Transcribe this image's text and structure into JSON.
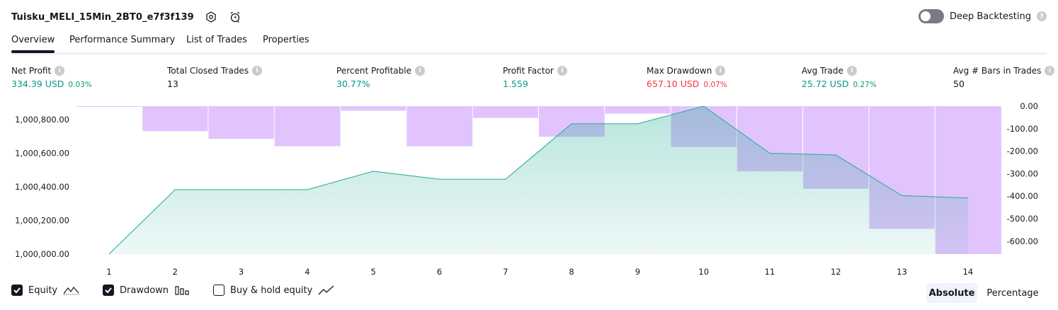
{
  "header": {
    "title": "Tuisku_MELI_15Min_2BT0_e7f3f139",
    "icons": [
      "settings-icon",
      "alarm-clock-icon"
    ]
  },
  "deep_backtesting": {
    "label": "Deep Backtesting",
    "enabled": false,
    "help": "?"
  },
  "tabs": [
    {
      "label": "Overview",
      "active": true
    },
    {
      "label": "Performance Summary",
      "active": false
    },
    {
      "label": "List of Trades",
      "active": false
    },
    {
      "label": "Properties",
      "active": false
    }
  ],
  "info_glyph": "i",
  "metrics": [
    {
      "label": "Net Profit",
      "value": "334.39 USD",
      "pct": "0.03%",
      "color": "#089981"
    },
    {
      "label": "Total Closed Trades",
      "value": "13",
      "pct": "",
      "color": "#131722"
    },
    {
      "label": "Percent Profitable",
      "value": "30.77%",
      "pct": "",
      "color": "#089981"
    },
    {
      "label": "Profit Factor",
      "value": "1.559",
      "pct": "",
      "color": "#089981"
    },
    {
      "label": "Max Drawdown",
      "value": "657.10 USD",
      "pct": "0.07%",
      "color": "#f23645"
    },
    {
      "label": "Avg Trade",
      "value": "25.72 USD",
      "pct": "0.27%",
      "color": "#089981"
    },
    {
      "label": "Avg # Bars in Trades",
      "value": "50",
      "pct": "",
      "color": "#131722"
    }
  ],
  "chart_data": {
    "type": "area",
    "x": [
      1,
      2,
      3,
      4,
      5,
      6,
      7,
      8,
      9,
      10,
      11,
      12,
      13,
      14
    ],
    "series": [
      {
        "name": "Equity",
        "axis": "left",
        "values": [
          1000000,
          1000383,
          1000383,
          1000383,
          1000493,
          1000445,
          1000445,
          1000775,
          1000775,
          1000880,
          1000600,
          1000590,
          1000348,
          1000334
        ]
      },
      {
        "name": "Drawdown",
        "axis": "right",
        "type": "bar",
        "values": [
          -3,
          -111,
          -145,
          -178,
          -20,
          -178,
          -52,
          -136,
          -33,
          -181,
          -289,
          -367,
          -545,
          -657
        ]
      }
    ],
    "y_left": {
      "ticks": [
        "1,000,000.00",
        "1,000,200.00",
        "1,000,400.00",
        "1,000,600.00",
        "1,000,800.00"
      ],
      "range": [
        1000000,
        1000880
      ]
    },
    "y_right": {
      "ticks": [
        "0.00",
        "-100.00",
        "-200.00",
        "-300.00",
        "-400.00",
        "-500.00",
        "-600.00"
      ],
      "range": [
        -657,
        0
      ]
    },
    "colors": {
      "equity_line": "#22ab94",
      "equity_fill": "#22ab94",
      "drawdown": "#e1c4fd",
      "overlap": "#aab4e5"
    }
  },
  "legend": {
    "equity": {
      "label": "Equity",
      "checked": true
    },
    "drawdown": {
      "label": "Drawdown",
      "checked": true
    },
    "buyhold": {
      "label": "Buy & hold equity",
      "checked": false
    }
  },
  "mode": {
    "absolute": "Absolute",
    "percentage": "Percentage",
    "selected": "Absolute"
  }
}
